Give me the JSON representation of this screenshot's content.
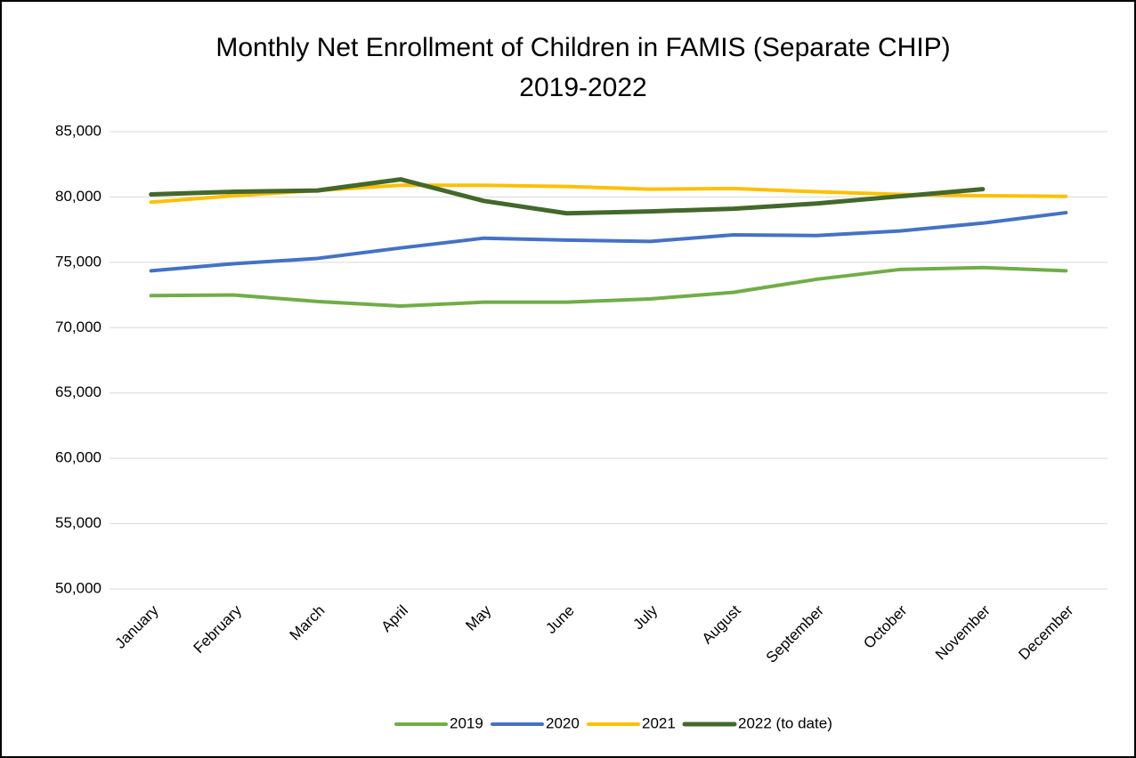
{
  "chart_data": {
    "type": "line",
    "title": "Monthly Net Enrollment of Children in FAMIS (Separate CHIP)",
    "subtitle": "2019-2022",
    "categories": [
      "January",
      "February",
      "March",
      "April",
      "May",
      "June",
      "July",
      "August",
      "September",
      "October",
      "November",
      "December"
    ],
    "series": [
      {
        "name": "2019",
        "color": "#70ad47",
        "values": [
          72450,
          72500,
          72000,
          71650,
          71950,
          71950,
          72200,
          72700,
          73700,
          74450,
          74600,
          74350
        ]
      },
      {
        "name": "2020",
        "color": "#4472c4",
        "values": [
          74350,
          74900,
          75300,
          76100,
          76850,
          76700,
          76600,
          77100,
          77050,
          77400,
          78000,
          78800
        ]
      },
      {
        "name": "2021",
        "color": "#ffc000",
        "values": [
          79600,
          80100,
          80500,
          80900,
          80900,
          80800,
          80600,
          80650,
          80400,
          80200,
          80100,
          80050
        ]
      },
      {
        "name": "2022 (to date)",
        "color": "#43682b",
        "values": [
          80200,
          80400,
          80500,
          81350,
          79700,
          78750,
          78900,
          79100,
          79500,
          80050,
          80600,
          null
        ]
      }
    ],
    "ylim": [
      50000,
      85000
    ],
    "yticks": [
      {
        "value": 50000,
        "label": "50,000"
      },
      {
        "value": 55000,
        "label": "55,000"
      },
      {
        "value": 60000,
        "label": "60,000"
      },
      {
        "value": 65000,
        "label": "65,000"
      },
      {
        "value": 70000,
        "label": "70,000"
      },
      {
        "value": 75000,
        "label": "75,000"
      },
      {
        "value": 80000,
        "label": "80,000"
      },
      {
        "value": 85000,
        "label": "85,000"
      }
    ],
    "grid": true,
    "legend": "bottom"
  }
}
